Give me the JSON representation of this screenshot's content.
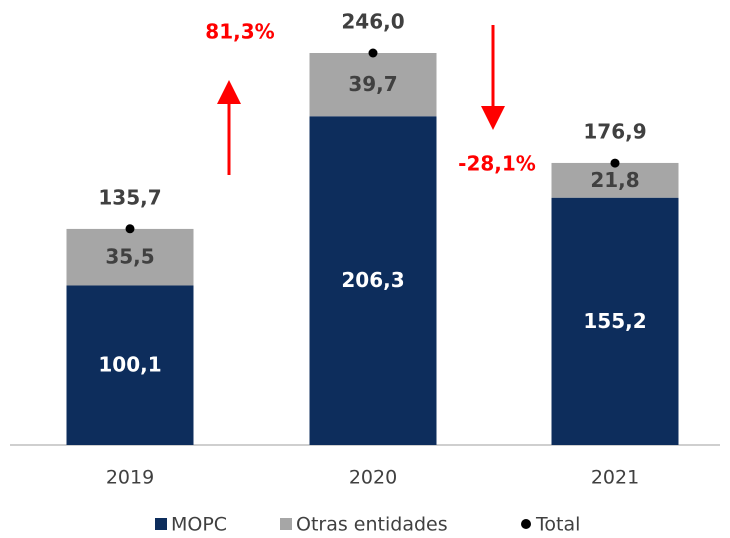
{
  "chart_data": {
    "type": "bar",
    "stacked": true,
    "categories": [
      "2019",
      "2020",
      "2021"
    ],
    "series": [
      {
        "name": "MOPC",
        "color": "#0d2d5c",
        "values": [
          100.1,
          206.3,
          155.2
        ],
        "value_labels": [
          "100,1",
          "206,3",
          "155,2"
        ]
      },
      {
        "name": "Otras entidades",
        "color": "#a6a6a6",
        "values": [
          35.5,
          39.7,
          21.8
        ],
        "value_labels": [
          "35,5",
          "39,7",
          "21,8"
        ]
      },
      {
        "name": "Total",
        "color": "#000000",
        "marker": "dot",
        "values": [
          135.7,
          246.0,
          176.9
        ],
        "value_labels": [
          "135,7",
          "246,0",
          "176,9"
        ]
      }
    ],
    "annotations": [
      "81,3%",
      "-28,1%"
    ],
    "legend": "bottom"
  }
}
